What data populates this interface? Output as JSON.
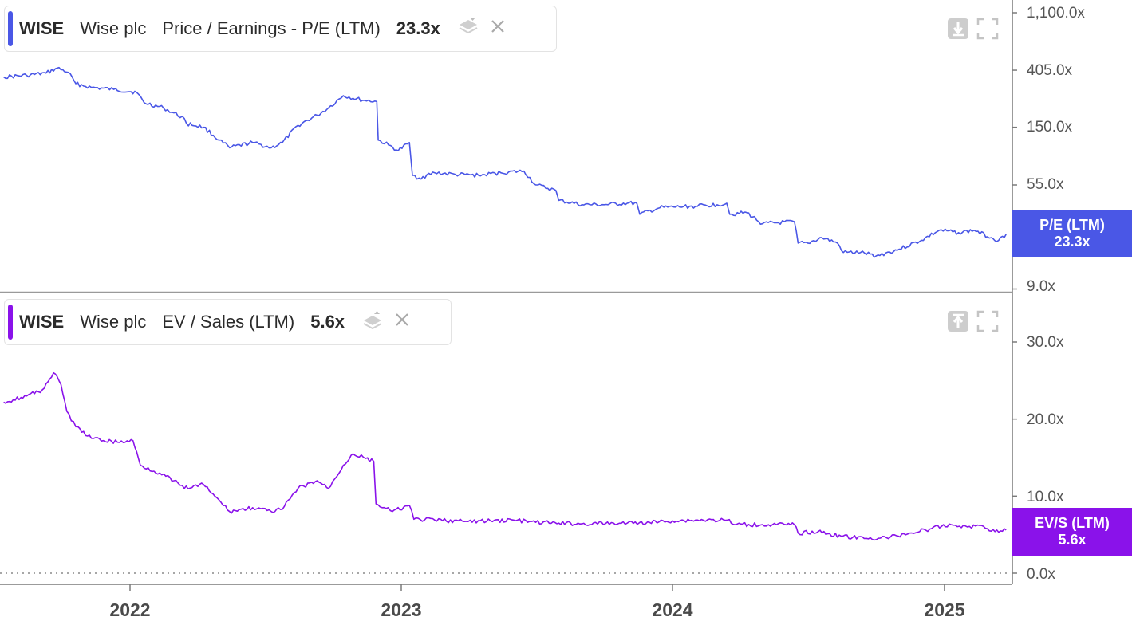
{
  "colors": {
    "pe": "#4a57e6",
    "evs": "#8a12ea"
  },
  "panels": [
    {
      "id": "pe",
      "ticker": "WISE",
      "company": "Wise plc",
      "metric": "Price / Earnings - P/E (LTM)",
      "value": "23.3x",
      "tag_name": "P/E (LTM)",
      "tag_value": "23.3x",
      "axis_ticks": [
        "1,100.0x",
        "405.0x",
        "150.0x",
        "55.0x",
        "9.0x"
      ],
      "icons": [
        "layers-icon",
        "close-icon",
        "move-down-icon",
        "expand-icon"
      ]
    },
    {
      "id": "evs",
      "ticker": "WISE",
      "company": "Wise plc",
      "metric": "EV / Sales (LTM)",
      "value": "5.6x",
      "tag_name": "EV/S (LTM)",
      "tag_value": "5.6x",
      "axis_ticks": [
        "30.0x",
        "20.0x",
        "10.0x",
        "0.0x"
      ],
      "icons": [
        "layers-icon",
        "close-icon",
        "move-up-icon",
        "expand-icon"
      ]
    }
  ],
  "x_axis_ticks": [
    "2022",
    "2023",
    "2024",
    "2025"
  ],
  "chart_data": [
    {
      "type": "line",
      "title": "",
      "x_type": "date",
      "x_range": [
        "2021-07-15",
        "2025-03-25"
      ],
      "y_scale": "log",
      "y_ticks": [
        1100,
        405,
        150,
        55,
        9
      ],
      "series": [
        {
          "name": "Price / Earnings - P/E (LTM)",
          "color": "#4a57e6",
          "points": [
            [
              "2021-07-15",
              360
            ],
            [
              "2021-08-15",
              370
            ],
            [
              "2021-09-10",
              385
            ],
            [
              "2021-09-25",
              420
            ],
            [
              "2021-10-10",
              390
            ],
            [
              "2021-10-20",
              320
            ],
            [
              "2021-11-10",
              300
            ],
            [
              "2021-12-10",
              290
            ],
            [
              "2022-01-10",
              275
            ],
            [
              "2022-01-20",
              230
            ],
            [
              "2022-02-15",
              210
            ],
            [
              "2022-03-15",
              175
            ],
            [
              "2022-03-18",
              160
            ],
            [
              "2022-04-10",
              150
            ],
            [
              "2022-05-01",
              120
            ],
            [
              "2022-05-15",
              105
            ],
            [
              "2022-06-15",
              115
            ],
            [
              "2022-07-10",
              105
            ],
            [
              "2022-07-25",
              115
            ],
            [
              "2022-08-15",
              155
            ],
            [
              "2022-09-10",
              185
            ],
            [
              "2022-09-25",
              210
            ],
            [
              "2022-10-15",
              260
            ],
            [
              "2022-11-10",
              240
            ],
            [
              "2022-11-29",
              235
            ],
            [
              "2022-12-01",
              120
            ],
            [
              "2022-12-15",
              110
            ],
            [
              "2022-12-28",
              100
            ],
            [
              "2023-01-12",
              115
            ],
            [
              "2023-01-16",
              65
            ],
            [
              "2023-01-25",
              62
            ],
            [
              "2023-02-15",
              68
            ],
            [
              "2023-03-15",
              66
            ],
            [
              "2023-04-15",
              65
            ],
            [
              "2023-05-15",
              68
            ],
            [
              "2023-06-15",
              70
            ],
            [
              "2023-07-01",
              55
            ],
            [
              "2023-07-28",
              50
            ],
            [
              "2023-08-01",
              42
            ],
            [
              "2023-09-01",
              39
            ],
            [
              "2023-10-01",
              39
            ],
            [
              "2023-11-01",
              40
            ],
            [
              "2023-11-14",
              40
            ],
            [
              "2023-11-18",
              33
            ],
            [
              "2023-12-15",
              37
            ],
            [
              "2024-02-01",
              38
            ],
            [
              "2024-03-01",
              39
            ],
            [
              "2024-03-14",
              40
            ],
            [
              "2024-03-18",
              33
            ],
            [
              "2024-04-10",
              34
            ],
            [
              "2024-05-01",
              28
            ],
            [
              "2024-06-13",
              29
            ],
            [
              "2024-06-18",
              20
            ],
            [
              "2024-07-01",
              20
            ],
            [
              "2024-07-20",
              22
            ],
            [
              "2024-08-10",
              20
            ],
            [
              "2024-08-18",
              17
            ],
            [
              "2024-09-10",
              17
            ],
            [
              "2024-10-01",
              16
            ],
            [
              "2024-11-01",
              18
            ],
            [
              "2024-12-01",
              21
            ],
            [
              "2024-12-25",
              25
            ],
            [
              "2025-01-20",
              24
            ],
            [
              "2025-02-10",
              25
            ],
            [
              "2025-03-05",
              22
            ],
            [
              "2025-03-15",
              21
            ],
            [
              "2025-03-25",
              23.3
            ]
          ]
        }
      ]
    },
    {
      "type": "line",
      "title": "",
      "x_type": "date",
      "x_range": [
        "2021-07-15",
        "2025-03-25"
      ],
      "y_ticks": [
        30,
        20,
        10,
        0
      ],
      "series": [
        {
          "name": "EV / Sales (LTM)",
          "color": "#8a12ea",
          "points": [
            [
              "2021-07-15",
              22.2
            ],
            [
              "2021-08-15",
              23.0
            ],
            [
              "2021-09-05",
              23.8
            ],
            [
              "2021-09-20",
              26.0
            ],
            [
              "2021-09-30",
              24.5
            ],
            [
              "2021-10-08",
              21.0
            ],
            [
              "2021-10-20",
              19.0
            ],
            [
              "2021-11-10",
              17.5
            ],
            [
              "2021-12-15",
              17.0
            ],
            [
              "2022-01-05",
              17.2
            ],
            [
              "2022-01-15",
              14.0
            ],
            [
              "2022-02-10",
              13.0
            ],
            [
              "2022-03-01",
              12.0
            ],
            [
              "2022-03-15",
              11.0
            ],
            [
              "2022-04-10",
              11.5
            ],
            [
              "2022-04-25",
              10.0
            ],
            [
              "2022-05-15",
              8.0
            ],
            [
              "2022-06-15",
              8.5
            ],
            [
              "2022-07-10",
              8.0
            ],
            [
              "2022-07-25",
              8.3
            ],
            [
              "2022-08-15",
              11.0
            ],
            [
              "2022-09-10",
              12.0
            ],
            [
              "2022-09-25",
              11.0
            ],
            [
              "2022-10-15",
              14.0
            ],
            [
              "2022-10-28",
              15.5
            ],
            [
              "2022-11-25",
              14.5
            ],
            [
              "2022-11-28",
              9.0
            ],
            [
              "2022-12-20",
              8.0
            ],
            [
              "2023-01-12",
              8.8
            ],
            [
              "2023-01-18",
              7.0
            ],
            [
              "2023-02-15",
              6.9
            ],
            [
              "2023-04-01",
              6.7
            ],
            [
              "2023-05-01",
              6.8
            ],
            [
              "2023-06-01",
              6.9
            ],
            [
              "2023-07-01",
              6.6
            ],
            [
              "2023-08-01",
              6.5
            ],
            [
              "2023-09-01",
              6.4
            ],
            [
              "2023-11-01",
              6.5
            ],
            [
              "2023-12-01",
              6.6
            ],
            [
              "2024-01-01",
              6.8
            ],
            [
              "2024-02-01",
              6.9
            ],
            [
              "2024-03-15",
              6.9
            ],
            [
              "2024-03-25",
              6.3
            ],
            [
              "2024-05-01",
              6.3
            ],
            [
              "2024-06-13",
              6.3
            ],
            [
              "2024-06-18",
              5.2
            ],
            [
              "2024-07-15",
              5.4
            ],
            [
              "2024-08-15",
              4.8
            ],
            [
              "2024-09-15",
              4.5
            ],
            [
              "2024-10-15",
              4.6
            ],
            [
              "2024-11-15",
              5.2
            ],
            [
              "2024-12-15",
              5.8
            ],
            [
              "2025-01-10",
              6.3
            ],
            [
              "2025-02-01",
              6.0
            ],
            [
              "2025-02-20",
              6.2
            ],
            [
              "2025-03-10",
              5.4
            ],
            [
              "2025-03-25",
              5.6
            ]
          ]
        }
      ]
    }
  ]
}
